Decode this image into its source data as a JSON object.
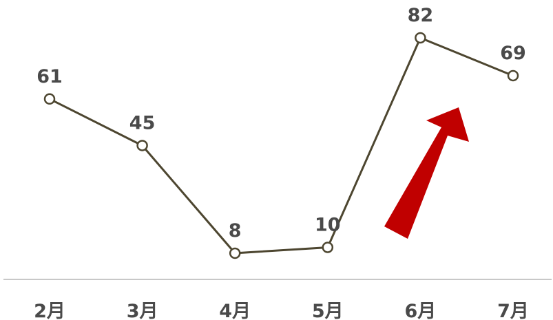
{
  "colors": {
    "line": "#4d4630",
    "marker_fill": "#ffffff",
    "axis": "#a6a6a6",
    "text": "#4a4a4a",
    "arrow": "#c00000"
  },
  "chart_data": {
    "type": "line",
    "title": "",
    "xlabel": "",
    "ylabel": "",
    "categories": [
      "2月",
      "3月",
      "4月",
      "5月",
      "6月",
      "7月"
    ],
    "series": [
      {
        "values": [
          61,
          45,
          8,
          10,
          82,
          69
        ]
      }
    ],
    "ylim": [
      -1,
      95
    ],
    "grid": false,
    "legend": "none",
    "data_labels": true,
    "annotation": "red-up-arrow"
  }
}
